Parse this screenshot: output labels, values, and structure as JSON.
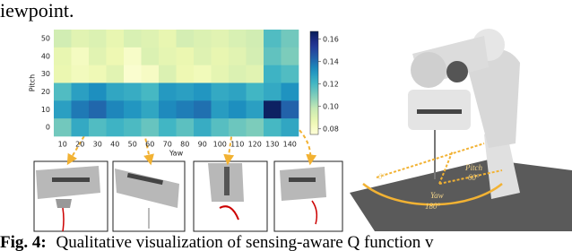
{
  "top_text": "iewpoint.",
  "chart_data": {
    "type": "heatmap",
    "x_label": "Yaw",
    "y_label": "Pitch",
    "x": [
      10,
      20,
      30,
      40,
      50,
      60,
      70,
      80,
      90,
      100,
      110,
      120,
      130,
      140
    ],
    "y": [
      50,
      40,
      30,
      20,
      10,
      0
    ],
    "values": [
      [
        0.095,
        0.09,
        0.092,
        0.088,
        0.093,
        0.091,
        0.088,
        0.094,
        0.092,
        0.09,
        0.093,
        0.095,
        0.118,
        0.112
      ],
      [
        0.088,
        0.082,
        0.09,
        0.086,
        0.08,
        0.092,
        0.089,
        0.087,
        0.091,
        0.088,
        0.09,
        0.094,
        0.115,
        0.11
      ],
      [
        0.087,
        0.083,
        0.085,
        0.09,
        0.078,
        0.081,
        0.092,
        0.086,
        0.084,
        0.089,
        0.092,
        0.09,
        0.122,
        0.118
      ],
      [
        0.118,
        0.128,
        0.133,
        0.126,
        0.124,
        0.12,
        0.13,
        0.128,
        0.131,
        0.125,
        0.127,
        0.121,
        0.125,
        0.132
      ],
      [
        0.128,
        0.138,
        0.142,
        0.135,
        0.131,
        0.126,
        0.134,
        0.137,
        0.14,
        0.129,
        0.133,
        0.128,
        0.165,
        0.143
      ],
      [
        0.112,
        0.125,
        0.118,
        0.122,
        0.119,
        0.114,
        0.121,
        0.116,
        0.124,
        0.117,
        0.113,
        0.11,
        0.12,
        0.126
      ]
    ],
    "colormap": "YlGnBu",
    "clim": [
      0.075,
      0.167
    ],
    "cticks": [
      0.08,
      {
        "value": 0.1,
        "label": "0.10"
      },
      0.12,
      0.14,
      0.16
    ]
  },
  "robot_labels": {
    "zero": "0°",
    "pitch": "Pitch",
    "pitch_value": "60°",
    "yaw": "Yaw",
    "yaw_value": "180°"
  },
  "caption": {
    "label": "Fig. 4:",
    "text": "Qualitative visualization of sensing-aware Q function v"
  }
}
